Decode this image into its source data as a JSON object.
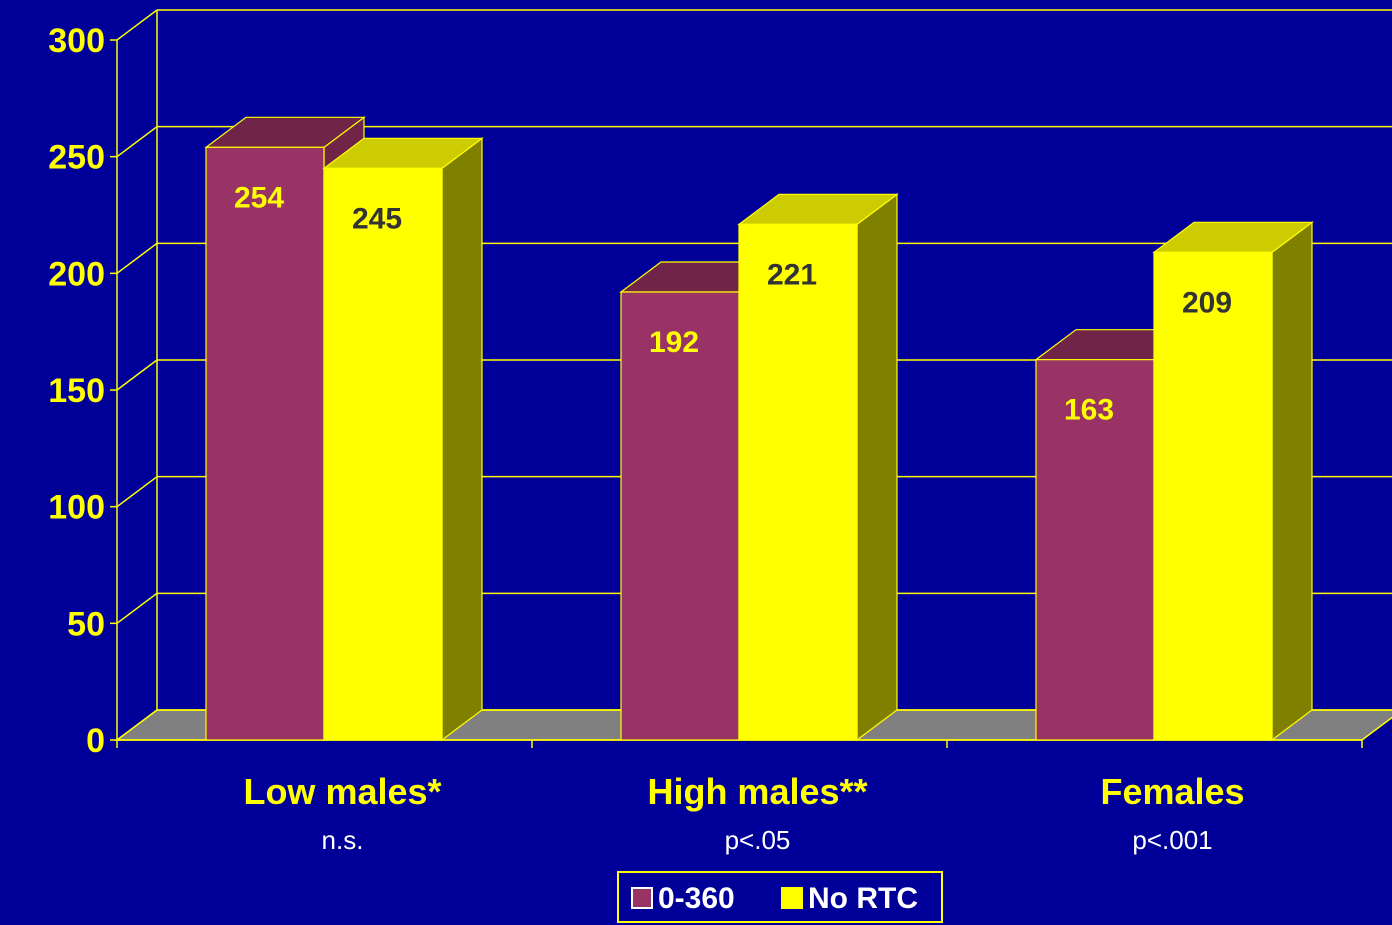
{
  "chart_data": {
    "type": "bar",
    "title": "",
    "xlabel": "",
    "ylabel": "",
    "ylim": [
      0,
      300
    ],
    "yticks": [
      0,
      50,
      100,
      150,
      200,
      250,
      300
    ],
    "grid": true,
    "three_d": true,
    "legend_position": "bottom-center",
    "categories": [
      "Low males*",
      "High males**",
      "Females"
    ],
    "category_notes": [
      "n.s.",
      "p<.05",
      "p<.001"
    ],
    "series": [
      {
        "name": "0-360",
        "values": [
          254,
          192,
          163
        ],
        "color": "#993366",
        "top_color": "#702548",
        "label_color": "#FFFF00"
      },
      {
        "name": "No RTC",
        "values": [
          245,
          221,
          209
        ],
        "color": "#FFFF00",
        "top_color": "#CCCC00",
        "side_color": "#808000",
        "label_color": "#333333"
      }
    ],
    "colors": {
      "background": "#000099",
      "axis": "#FFFF00",
      "floor": "#808080"
    }
  }
}
